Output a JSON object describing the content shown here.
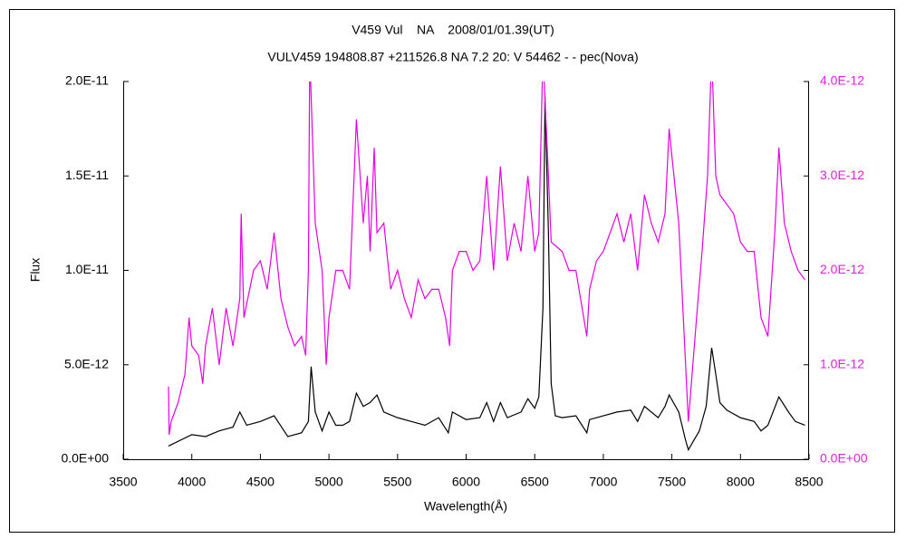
{
  "chart_data": {
    "type": "line",
    "title": "V459 Vul    NA    2008/01/01.39(UT)",
    "subtitle": "VULV459 194808.87 +211526.8 NA 7.2 20: V 54462 - - pec(Nova)",
    "x_label": "Wavelength(Å)",
    "y_label": "Flux",
    "xlim": [
      3500,
      8500
    ],
    "xticks": [
      3500,
      4000,
      4500,
      5000,
      5500,
      6000,
      6500,
      7000,
      7500,
      8000,
      8500
    ],
    "ylim": [
      0,
      2e-11
    ],
    "yticks": [
      {
        "value": 0,
        "label": "0.0E+00"
      },
      {
        "value": 5e-12,
        "label": "5.0E-12"
      },
      {
        "value": 1e-11,
        "label": "1.0E-11"
      },
      {
        "value": 1.5e-11,
        "label": "1.5E-11"
      },
      {
        "value": 2e-11,
        "label": "2.0E-11"
      }
    ],
    "y2lim": [
      0,
      4e-12
    ],
    "y2ticks": [
      {
        "value": 0,
        "label": "0.0E+00"
      },
      {
        "value": 1e-12,
        "label": "1.0E-12"
      },
      {
        "value": 2e-12,
        "label": "2.0E-12"
      },
      {
        "value": 3e-12,
        "label": "3.0E-12"
      },
      {
        "value": 4e-12,
        "label": "4.0E-12"
      }
    ],
    "y2color": "#e020e0",
    "series": [
      {
        "color": "#000000",
        "x": [
          3830,
          4000,
          4100,
          4200,
          4300,
          4350,
          4400,
          4500,
          4600,
          4700,
          4800,
          4850,
          4870,
          4900,
          4950,
          5000,
          5050,
          5100,
          5150,
          5200,
          5250,
          5300,
          5350,
          5400,
          5500,
          5600,
          5700,
          5800,
          5870,
          5900,
          6000,
          6100,
          6150,
          6200,
          6250,
          6300,
          6400,
          6450,
          6500,
          6530,
          6560,
          6575,
          6600,
          6620,
          6650,
          6700,
          6800,
          6880,
          6900,
          7000,
          7100,
          7200,
          7250,
          7300,
          7400,
          7450,
          7480,
          7550,
          7600,
          7620,
          7700,
          7750,
          7790,
          7820,
          7850,
          7900,
          8000,
          8100,
          8150,
          8200,
          8280,
          8350,
          8400,
          8470
        ],
        "values": [
          7e-13,
          1.3e-12,
          1.2e-12,
          1.5e-12,
          1.7e-12,
          2.5e-12,
          1.8e-12,
          2e-12,
          2.3e-12,
          1.2e-12,
          1.4e-12,
          2e-12,
          4.9e-12,
          2.5e-12,
          1.5e-12,
          2.5e-12,
          1.8e-12,
          1.8e-12,
          2e-12,
          3.5e-12,
          2.8e-12,
          3e-12,
          3.4e-12,
          2.5e-12,
          2.2e-12,
          2e-12,
          1.8e-12,
          2.2e-12,
          1.4e-12,
          2.5e-12,
          2.1e-12,
          2.2e-12,
          3e-12,
          2e-12,
          3e-12,
          2.2e-12,
          2.5e-12,
          3.2e-12,
          2.7e-12,
          3.3e-12,
          8e-12,
          1.92e-11,
          1.2e-11,
          4e-12,
          2.3e-12,
          2.2e-12,
          2.3e-12,
          1.4e-12,
          2.1e-12,
          2.3e-12,
          2.5e-12,
          2.6e-12,
          2e-12,
          2.8e-12,
          2.2e-12,
          2.8e-12,
          3.4e-12,
          2.5e-12,
          1e-12,
          5e-13,
          1.5e-12,
          2.8e-12,
          5.9e-12,
          4.5e-12,
          3e-12,
          2.6e-12,
          2.2e-12,
          2e-12,
          1.5e-12,
          1.8e-12,
          3.3e-12,
          2.5e-12,
          2e-12,
          1.8e-12
        ]
      },
      {
        "color": "#e600e6",
        "axis": "y2",
        "x": [
          3830,
          3835,
          3850,
          3900,
          3950,
          3980,
          4000,
          4050,
          4080,
          4100,
          4150,
          4200,
          4250,
          4300,
          4350,
          4360,
          4380,
          4450,
          4500,
          4550,
          4600,
          4650,
          4700,
          4750,
          4800,
          4830,
          4850,
          4860,
          4900,
          4950,
          4980,
          5000,
          5050,
          5100,
          5150,
          5200,
          5250,
          5280,
          5300,
          5330,
          5350,
          5400,
          5450,
          5500,
          5550,
          5600,
          5650,
          5700,
          5750,
          5800,
          5850,
          5880,
          5900,
          5950,
          6000,
          6050,
          6100,
          6150,
          6200,
          6250,
          6300,
          6350,
          6400,
          6450,
          6500,
          6530,
          6560,
          6600,
          6620,
          6700,
          6750,
          6800,
          6880,
          6900,
          6950,
          7000,
          7050,
          7100,
          7150,
          7200,
          7250,
          7300,
          7350,
          7400,
          7450,
          7480,
          7550,
          7600,
          7620,
          7680,
          7720,
          7760,
          7790,
          7820,
          7850,
          7900,
          7950,
          8000,
          8050,
          8100,
          8150,
          8200,
          8250,
          8280,
          8320,
          8370,
          8420,
          8470
        ],
        "values": [
          7.7e-13,
          2.6e-13,
          4e-13,
          6e-13,
          9e-13,
          1.5e-12,
          1.2e-12,
          1.1e-12,
          8e-13,
          1.2e-12,
          1.6e-12,
          1e-12,
          1.6e-12,
          1.2e-12,
          1.7e-12,
          2.6e-12,
          1.5e-12,
          2e-12,
          2.1e-12,
          1.8e-12,
          2.4e-12,
          1.7e-12,
          1.4e-12,
          1.2e-12,
          1.3e-12,
          1.1e-12,
          2e-12,
          4.3e-12,
          2.5e-12,
          2e-12,
          1e-12,
          1.5e-12,
          2e-12,
          2e-12,
          1.8e-12,
          3.6e-12,
          2.5e-12,
          3e-12,
          2.2e-12,
          3.3e-12,
          2.4e-12,
          2.5e-12,
          1.8e-12,
          2e-12,
          1.7e-12,
          1.5e-12,
          1.9e-12,
          1.7e-12,
          1.8e-12,
          1.8e-12,
          1.5e-12,
          1.2e-12,
          2e-12,
          2.2e-12,
          2.2e-12,
          2e-12,
          2.1e-12,
          3e-12,
          2e-12,
          3.1e-12,
          2.1e-12,
          2.5e-12,
          2.2e-12,
          3e-12,
          2.2e-12,
          2.4e-12,
          4.3e-12,
          3e-12,
          2.3e-12,
          2.2e-12,
          2e-12,
          2e-12,
          1.3e-12,
          1.8e-12,
          2.1e-12,
          2.2e-12,
          2.4e-12,
          2.6e-12,
          2.3e-12,
          2.6e-12,
          2e-12,
          2.8e-12,
          2.5e-12,
          2.3e-12,
          2.6e-12,
          3.5e-12,
          2.5e-12,
          1e-12,
          4e-13,
          1.5e-12,
          2.2e-12,
          3e-12,
          4.3e-12,
          3e-12,
          2.8e-12,
          2.7e-12,
          2.6e-12,
          2.3e-12,
          2.2e-12,
          2.2e-12,
          1.5e-12,
          1.3e-12,
          2.4e-12,
          3.3e-12,
          2.5e-12,
          2.2e-12,
          2e-12,
          1.9e-12
        ]
      }
    ]
  }
}
